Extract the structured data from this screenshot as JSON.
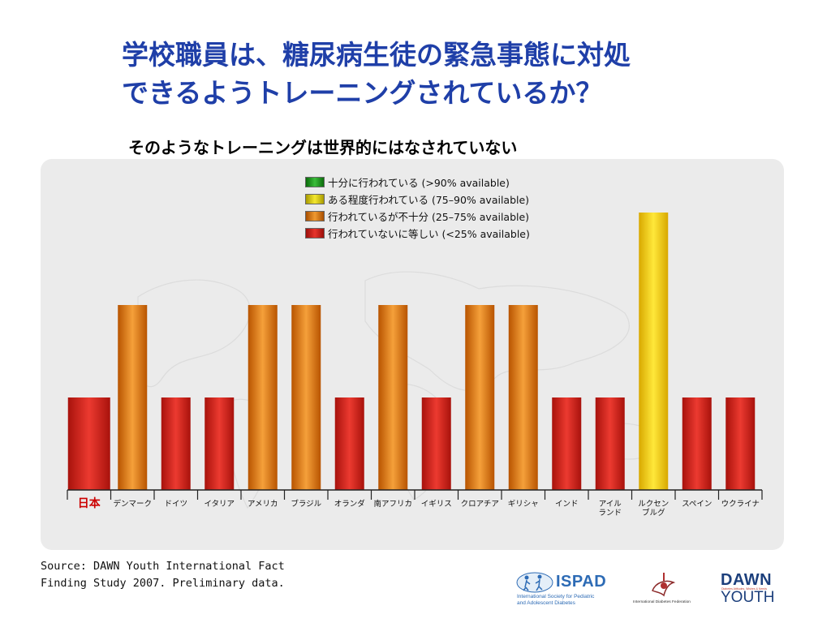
{
  "title": {
    "line1": "学校職員は、糖尿病生徒の緊急事態に対処",
    "line2": "できるようトレーニングされているか？"
  },
  "subtitle": "そのようなトレーニングは世界的にはなされていない",
  "legend": [
    {
      "label": "十分に行われている (>90% available)",
      "color": "#1e9a1e"
    },
    {
      "label": "ある程度行われている (75–90% available)",
      "color": "#e8d000"
    },
    {
      "label": "行われているが不十分 (25–75% available)",
      "color": "#e07a10"
    },
    {
      "label": "行われていないに等しい (<25% available)",
      "color": "#d41c14"
    }
  ],
  "chart_data": {
    "type": "bar",
    "categories": [
      [
        "日本"
      ],
      [
        "デンマーク"
      ],
      [
        "ドイツ"
      ],
      [
        "イタリア"
      ],
      [
        "アメリカ"
      ],
      [
        "ブラジル"
      ],
      [
        "オランダ"
      ],
      [
        "南アフリカ"
      ],
      [
        "イギリス"
      ],
      [
        "クロアチア"
      ],
      [
        "ギリシャ"
      ],
      [
        "インド"
      ],
      [
        "アイル",
        "ランド"
      ],
      [
        "ルクセン",
        "ブルグ"
      ],
      [
        "スペイン"
      ],
      [
        "ウクライナ"
      ]
    ],
    "highlight_category_index": 0,
    "highlight_color": "#cc0000",
    "values": [
      1,
      2,
      1,
      1,
      2,
      2,
      1,
      2,
      1,
      2,
      2,
      1,
      1,
      3,
      1,
      1
    ],
    "value_meaning": {
      "1": "行われていないに等しい (<25% available)",
      "2": "行われているが不十分 (25–75% available)",
      "3": "ある程度行われている (75–90% available)",
      "4": "十分に行われている (>90% available)"
    },
    "ylim": [
      0,
      4
    ],
    "grid": false,
    "legend_position": "top-center"
  },
  "source": {
    "line1": "Source: DAWN Youth International Fact",
    "line2": "Finding Study 2007. Preliminary data."
  },
  "logos": {
    "ispad_name": "ISPAD",
    "ispad_sub1": "International Society for Pediatric",
    "ispad_sub2": "and Adolescent Diabetes",
    "idf_name": "International Diabetes Federation",
    "dawn_line1": "DAWN",
    "dawn_tagline": "Diabetes Attitudes, Wishes & Needs",
    "dawn_line2": "YOUTH"
  }
}
